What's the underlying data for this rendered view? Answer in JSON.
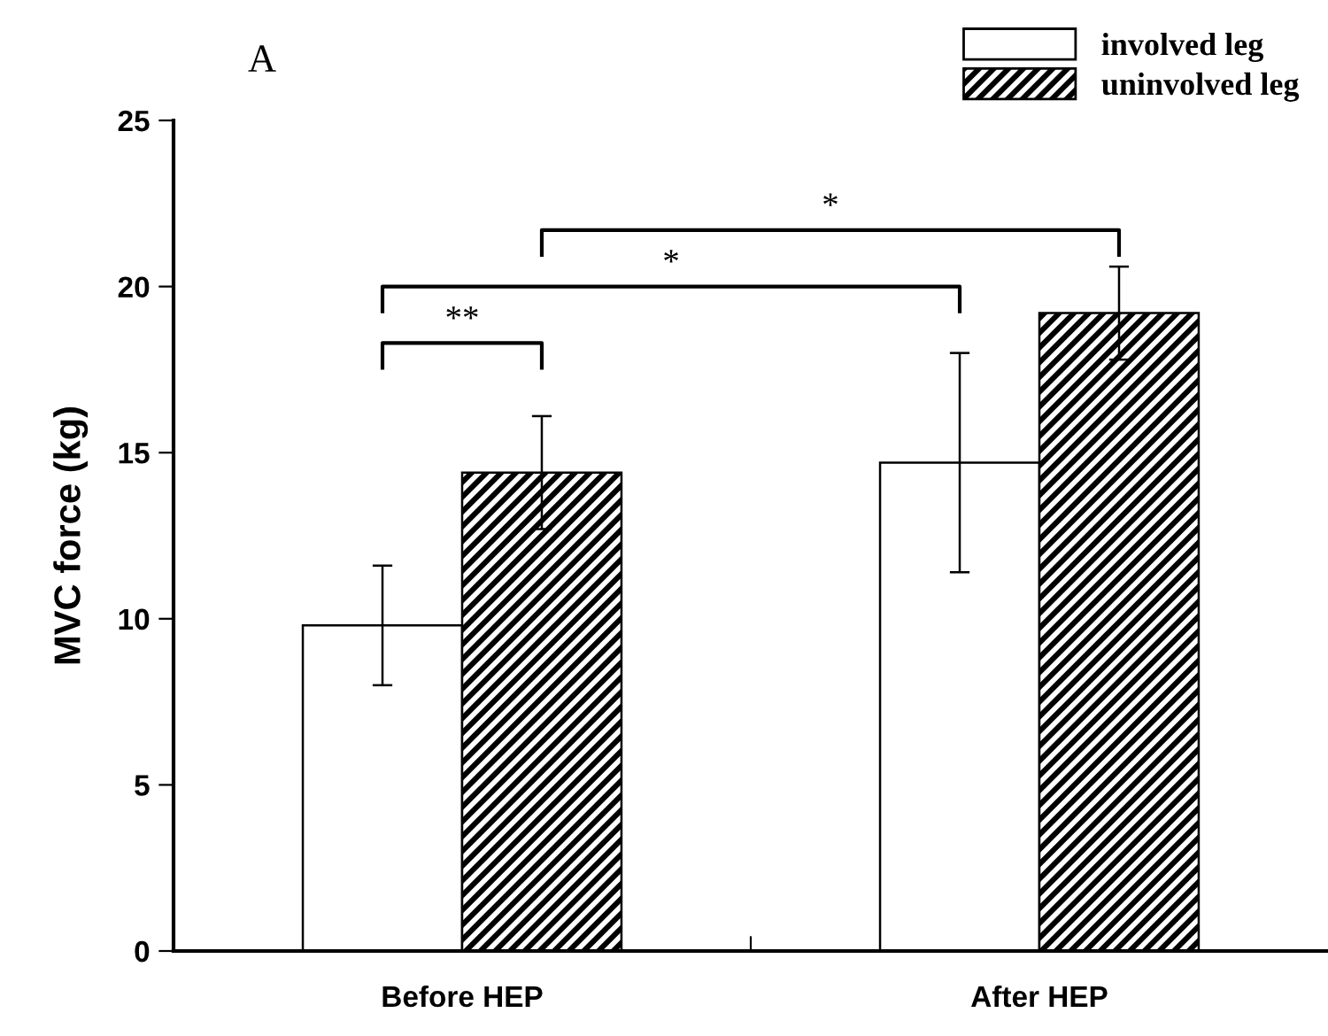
{
  "chart_data": {
    "type": "bar",
    "title": "A",
    "ylabel": "MVC force (kg)",
    "categories": [
      "Before HEP",
      "After HEP"
    ],
    "series": [
      {
        "name": "involved leg",
        "color": "#ffffff",
        "values": [
          9.8,
          14.7
        ],
        "errors": [
          1.8,
          3.3
        ]
      },
      {
        "name": "uninvolved leg",
        "color": "#000000",
        "values": [
          14.4,
          19.2
        ],
        "errors": [
          1.7,
          1.4
        ]
      }
    ],
    "ylim": [
      0,
      25
    ],
    "yticks": [
      0,
      5,
      10,
      15,
      20,
      25
    ],
    "grid": false,
    "legend": "top right",
    "annotations": [
      "**",
      "*",
      "*"
    ]
  }
}
